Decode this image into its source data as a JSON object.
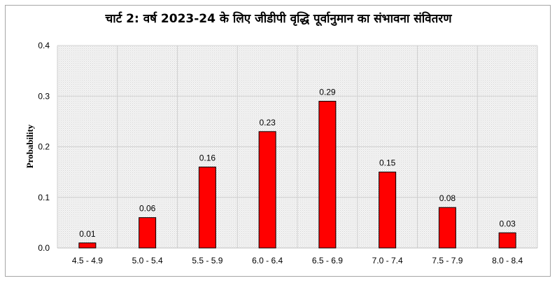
{
  "chart_data": {
    "type": "bar",
    "title": "चार्ट 2: वर्ष 2023-24 के लिए जीडीपी वृद्धि पूर्वानुमान का संभावना संवितरण",
    "xlabel": "",
    "ylabel": "Probability",
    "categories": [
      "4.5 - 4.9",
      "5.0 - 5.4",
      "5.5 - 5.9",
      "6.0 - 6.4",
      "6.5 - 6.9",
      "7.0 - 7.4",
      "7.5 - 7.9",
      "8.0 - 8.4"
    ],
    "values": [
      0.01,
      0.06,
      0.16,
      0.23,
      0.29,
      0.15,
      0.08,
      0.03
    ],
    "data_labels": [
      "0.01",
      "0.06",
      "0.16",
      "0.23",
      "0.29",
      "0.15",
      "0.08",
      "0.03"
    ],
    "ylim": [
      0,
      0.4
    ],
    "yticks": [
      "0.0",
      "0.1",
      "0.2",
      "0.3",
      "0.4"
    ],
    "grid": true,
    "bar_color": "#ff0000",
    "bar_edge_color": "#000000",
    "legend": "none"
  }
}
